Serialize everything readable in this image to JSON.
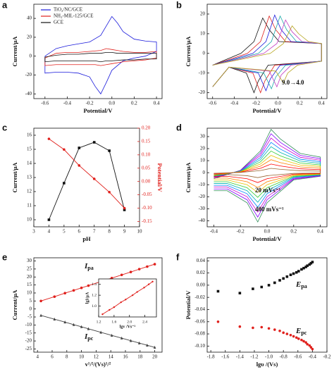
{
  "chart_data": [
    {
      "type": "line",
      "panel_label": "a",
      "x_label": "Potential/V",
      "y_label": "Current/μA",
      "legend": "upper left",
      "xlim": [
        -0.7,
        0.45
      ],
      "xticks": [
        -0.6,
        -0.4,
        -0.2,
        {
          "value": 0,
          "label": "0.0"
        },
        0.2,
        0.4
      ],
      "ylim": [
        -45,
        55
      ],
      "yticks": [
        -40,
        -20,
        0,
        20,
        40
      ],
      "x": [
        -0.6,
        -0.5,
        -0.4,
        -0.3,
        -0.2,
        -0.1,
        -0.05,
        0,
        0.05,
        0.1,
        0.2,
        0.3,
        0.4,
        0.4,
        0.3,
        0.2,
        0.1,
        0,
        -0.05,
        -0.1,
        -0.15,
        -0.2,
        -0.3,
        -0.4,
        -0.5,
        -0.6,
        -0.6
      ],
      "series": [
        {
          "name": "TiO₂/NC/GCE",
          "color": "#1a1adb",
          "values": [
            0,
            8,
            11,
            13,
            15,
            22,
            32,
            42,
            35,
            26,
            18,
            16,
            15,
            5,
            0,
            -2,
            -5,
            -15,
            -28,
            -40,
            -32,
            -22,
            -18,
            -17,
            -17,
            -18,
            0
          ]
        },
        {
          "name": "NH₂-MIL-125/GCE",
          "color": "#e0201c",
          "values": [
            -2,
            3,
            4,
            4,
            5,
            6,
            8,
            7,
            6,
            5,
            4,
            4,
            5,
            -2,
            -4,
            -5,
            -6,
            -8,
            -9,
            -10,
            -9,
            -9,
            -9,
            -9,
            -9,
            -10,
            -2
          ]
        },
        {
          "name": "GCE",
          "color": "#111111",
          "values": [
            -1,
            1,
            2,
            2,
            3,
            3,
            4,
            4,
            3,
            3,
            3,
            3,
            3,
            -3,
            -3,
            -4,
            -4,
            -5,
            -5,
            -6,
            -5,
            -5,
            -5,
            -5,
            -5,
            -6,
            -1
          ]
        }
      ]
    },
    {
      "type": "line",
      "panel_label": "b",
      "x_label": "Potential/V",
      "y_label": "Current/μA",
      "xlim": [
        -0.65,
        0.45
      ],
      "xticks": [
        -0.6,
        -0.4,
        -0.2,
        {
          "value": 0,
          "label": "0.0"
        },
        0.2,
        0.4
      ],
      "ylim": [
        -23,
        25
      ],
      "yticks": [
        -20,
        -10,
        0,
        10,
        20
      ],
      "annotations": [
        {
          "text": "9.0→4.0"
        }
      ],
      "series": [
        {
          "color": "#111111",
          "x": [
            -0.6,
            -0.34,
            -0.22,
            -0.14,
            -0.08,
            0.01,
            0.4,
            0.4,
            -0.09,
            -0.18,
            -0.22,
            -0.29,
            -0.45,
            -0.6
          ],
          "values": [
            -6,
            0,
            6,
            18,
            12,
            6,
            5,
            -4,
            -6,
            -14,
            -20,
            -10,
            -7,
            -17
          ]
        },
        {
          "color": "#e0201c",
          "x": [
            -0.6,
            -0.28,
            -0.16,
            -0.08,
            -0.02,
            0.07,
            0.4,
            0.4,
            -0.03,
            -0.12,
            -0.16,
            -0.23,
            -0.45,
            -0.6
          ],
          "values": [
            -6,
            0,
            6,
            19,
            12,
            6,
            5,
            -4,
            -6,
            -14,
            -20,
            -10,
            -7,
            -17
          ]
        },
        {
          "color": "#1a1adb",
          "x": [
            -0.6,
            -0.23,
            -0.11,
            -0.03,
            0.03,
            0.12,
            0.4,
            0.4,
            0.02,
            -0.07,
            -0.11,
            -0.18,
            -0.45,
            -0.6
          ],
          "values": [
            -6,
            0,
            6,
            19.5,
            12,
            6,
            5,
            -4,
            -6,
            -13,
            -19,
            -10,
            -7,
            -17
          ]
        },
        {
          "color": "#17a8a8",
          "x": [
            -0.6,
            -0.18,
            -0.06,
            0.02,
            0.08,
            0.17,
            0.4,
            0.4,
            0.07,
            -0.02,
            -0.06,
            -0.13,
            -0.45,
            -0.6
          ],
          "values": [
            -6,
            0,
            6,
            19,
            12,
            6,
            5,
            -4,
            -6,
            -12,
            -18,
            -10,
            -7,
            -17
          ]
        },
        {
          "color": "#c23bc2",
          "x": [
            -0.6,
            -0.13,
            -0.01,
            0.07,
            0.13,
            0.22,
            0.4,
            0.4,
            0.12,
            0.03,
            -0.01,
            -0.08,
            -0.45,
            -0.6
          ],
          "values": [
            -6,
            0,
            5,
            17,
            11,
            6,
            5,
            -4,
            -6,
            -11,
            -17,
            -9,
            -7,
            -17
          ]
        },
        {
          "color": "#b5a41a",
          "x": [
            -0.6,
            -0.07,
            0.05,
            0.13,
            0.19,
            0.28,
            0.4,
            0.4,
            0.18,
            0.09,
            0.05,
            -0.02,
            -0.45,
            -0.6
          ],
          "values": [
            -6,
            0,
            5,
            14,
            10,
            6,
            5,
            -4,
            -6,
            -10,
            -15,
            -9,
            -7,
            -17
          ]
        }
      ]
    },
    {
      "type": "line",
      "panel_label": "c",
      "x_label": "pH",
      "y_label": "Current/μA",
      "y2_label": "Potential/V",
      "xlim": [
        3,
        10
      ],
      "xticks": [
        3,
        4,
        5,
        6,
        7,
        8,
        9,
        10
      ],
      "ylim": [
        9.5,
        16.5
      ],
      "yticks": [
        10,
        11,
        12,
        13,
        14,
        15,
        16
      ],
      "y2lim": [
        -0.17,
        0.2
      ],
      "y2ticks": [
        -0.15,
        {
          "value": -0.1,
          "label": "-0.10"
        },
        -0.05,
        {
          "value": 0,
          "label": "0.00"
        },
        0.05,
        {
          "value": 0.1,
          "label": "0.10"
        },
        0.15,
        {
          "value": 0.2,
          "label": "0.20"
        }
      ],
      "x": [
        4,
        5,
        6,
        7,
        8,
        9
      ],
      "series": [
        {
          "color": "#111111",
          "marker": "square",
          "values": [
            10,
            12.6,
            15.1,
            15.5,
            14.9,
            10.7
          ]
        },
        {
          "color": "#e0201c",
          "marker": "circle",
          "axis": "y2",
          "values": [
            0.16,
            0.12,
            0.06,
            0.01,
            -0.04,
            -0.1
          ]
        }
      ]
    },
    {
      "type": "line",
      "panel_label": "d",
      "x_label": "Potential/V",
      "y_label": "Current/μA",
      "xlim": [
        -0.45,
        0.45
      ],
      "xticks": [
        -0.4,
        -0.2,
        {
          "value": 0,
          "label": "0.0"
        },
        0.2,
        0.4
      ],
      "ylim": [
        -45,
        37
      ],
      "yticks": [
        -40,
        -30,
        -20,
        -10,
        0,
        10,
        20,
        30
      ],
      "annotations": [
        {
          "text": "20 mVs⁻¹"
        },
        {
          "text": "400 mVs⁻¹"
        }
      ],
      "x": [
        -0.4,
        -0.2,
        -0.05,
        0.03,
        0.1,
        0.25,
        0.4,
        0.4,
        0.2,
        0,
        -0.07,
        -0.15,
        -0.3,
        -0.4
      ],
      "series": [
        {
          "color": "#2e8b57",
          "values": [
            -5,
            2,
            18,
            36,
            28,
            16,
            13,
            -3,
            -6,
            -25,
            -41,
            -25,
            -15,
            -15
          ]
        },
        {
          "color": "#8000ff",
          "values": [
            -4.5,
            1.8,
            16.2,
            32.4,
            25.2,
            14.4,
            11.7,
            -2.7,
            -5.4,
            -22.5,
            -36.9,
            -22.5,
            -13.5,
            -13.5
          ]
        },
        {
          "color": "#cc00cc",
          "values": [
            -4,
            1.6,
            14.4,
            28.8,
            22.4,
            12.8,
            10.4,
            -2.4,
            -4.8,
            -20,
            -32.8,
            -20,
            -12,
            -12
          ]
        },
        {
          "color": "#0080ff",
          "values": [
            -3.5,
            1.4,
            12.6,
            25.2,
            19.6,
            11.2,
            9.1,
            -2.1,
            -4.2,
            -17.5,
            -28.7,
            -17.5,
            -10.5,
            -10.5
          ]
        },
        {
          "color": "#00b3b3",
          "values": [
            -3,
            1.2,
            10.8,
            21.6,
            16.8,
            9.6,
            7.8,
            -1.8,
            -3.6,
            -15,
            -24.6,
            -15,
            -9,
            -9
          ]
        },
        {
          "color": "#33cc33",
          "values": [
            -2.5,
            1,
            9,
            18,
            14,
            8,
            6.5,
            -1.5,
            -3,
            -12.5,
            -20.5,
            -12.5,
            -7.5,
            -7.5
          ]
        },
        {
          "color": "#e6c300",
          "values": [
            -2,
            0.8,
            7.2,
            14.4,
            11.2,
            6.4,
            5.2,
            -1.2,
            -2.4,
            -10,
            -16.4,
            -10,
            -6,
            -6
          ]
        },
        {
          "color": "#ff8000",
          "values": [
            -1.5,
            0.6,
            5.4,
            10.8,
            8.4,
            4.8,
            3.9,
            -0.9,
            -1.8,
            -7.5,
            -12.3,
            -7.5,
            -4.5,
            -4.5
          ]
        },
        {
          "color": "#ff0000",
          "values": [
            -1,
            0.4,
            3.6,
            7.2,
            5.6,
            3.2,
            2.6,
            -0.6,
            -1.2,
            -5,
            -8.2,
            -5,
            -3,
            -3
          ]
        },
        {
          "color": "#996633",
          "values": [
            -0.5,
            0.2,
            1.8,
            3.6,
            2.8,
            1.6,
            1.3,
            -0.3,
            -0.6,
            -2.5,
            -4.1,
            -2.5,
            -1.5,
            -1.5
          ]
        }
      ]
    },
    {
      "type": "line",
      "panel_label": "e",
      "x_label": "v¹/²/(Vs)¹/²",
      "y_label": "Current/μA",
      "xlim": [
        3.5,
        21
      ],
      "xticks": [
        4,
        6,
        8,
        10,
        12,
        14,
        16,
        18,
        20
      ],
      "ylim": [
        -27,
        32
      ],
      "yticks": [
        -25,
        -20,
        -15,
        -10,
        -5,
        0,
        5,
        10,
        15,
        20,
        25,
        30
      ],
      "annotations": [
        {
          "text": "I",
          "sub": "pa"
        },
        {
          "text": "I",
          "sub": "pc"
        }
      ],
      "x": [
        4.47,
        6.32,
        7.75,
        8.94,
        10,
        10.95,
        12.65,
        14.14,
        15.49,
        16.73,
        17.89,
        18.97,
        20
      ],
      "series": [
        {
          "color": "#e0201c",
          "marker": "circle",
          "values": [
            5,
            7.7,
            9.9,
            11.6,
            13.2,
            14.6,
            17.1,
            19.3,
            21.3,
            23.1,
            24.9,
            26.5,
            28
          ]
        },
        {
          "color": "#444444",
          "marker": "triangle",
          "values": [
            -4,
            -6.4,
            -8.2,
            -9.8,
            -11.1,
            -12.4,
            -14.6,
            -16.5,
            -18.2,
            -19.8,
            -21.3,
            -22.7,
            -24
          ]
        }
      ],
      "inset": {
        "type": "line",
        "x_label": "lgv /Vs⁻¹",
        "y_label": "lgI/μA",
        "xlim": [
          1.2,
          2.7
        ],
        "xticks": [
          1.2,
          1.6,
          {
            "value": 2,
            "label": "2.0"
          },
          2.4
        ],
        "ylim": [
          0.8,
          1.5
        ],
        "yticks": [
          {
            "value": 1,
            "label": "1.0"
          },
          1.2,
          1.4
        ],
        "x": [
          1.3,
          1.48,
          1.6,
          1.78,
          1.9,
          2.08,
          2.2,
          2.38,
          2.5,
          2.6
        ],
        "series": [
          {
            "color": "#e0201c",
            "marker": "circle",
            "values": [
              0.85,
              0.93,
              0.98,
              1.07,
              1.12,
              1.2,
              1.26,
              1.34,
              1.4,
              1.45
            ]
          }
        ]
      }
    },
    {
      "type": "scatter",
      "panel_label": "f",
      "x_label": "lgυ /(Vs)",
      "y_label": "Potential/V",
      "xlim": [
        -1.85,
        -0.2
      ],
      "xticks": [
        -1.8,
        -1.6,
        -1.4,
        -1.2,
        {
          "value": -1,
          "label": "-1.0"
        },
        -0.8,
        -0.6,
        -0.4,
        -0.2
      ],
      "ylim": [
        -0.11,
        0.045
      ],
      "yticks": [
        {
          "value": -0.1,
          "label": "-0.10"
        },
        -0.08,
        -0.06,
        -0.04,
        -0.02,
        {
          "value": 0,
          "label": "0.00"
        },
        0.02,
        0.04
      ],
      "annotations": [
        {
          "text": "E",
          "sub": "pa"
        },
        {
          "text": "E",
          "sub": "pc"
        }
      ],
      "x": [
        -1.7,
        -1.4,
        -1.22,
        -1.1,
        -1,
        -0.92,
        -0.85,
        -0.8,
        -0.75,
        -0.7,
        -0.66,
        -0.62,
        -0.59,
        -0.55,
        -0.52,
        -0.49,
        -0.47,
        -0.44,
        -0.42,
        -0.4
      ],
      "series": [
        {
          "color": "#111111",
          "marker": "square",
          "values": [
            -0.01,
            -0.013,
            -0.006,
            -0.003,
            0,
            0.004,
            0.008,
            0.011,
            0.014,
            0.017,
            0.019,
            0.021,
            0.023,
            0.026,
            0.028,
            0.03,
            0.032,
            0.034,
            0.036,
            0.038
          ]
        },
        {
          "color": "#e0201c",
          "marker": "circle",
          "values": [
            -0.06,
            -0.068,
            -0.07,
            -0.069,
            -0.071,
            -0.073,
            -0.075,
            -0.078,
            -0.08,
            -0.082,
            -0.084,
            -0.086,
            -0.088,
            -0.09,
            -0.092,
            -0.094,
            -0.097,
            -0.099,
            -0.102,
            -0.105
          ]
        }
      ]
    }
  ]
}
